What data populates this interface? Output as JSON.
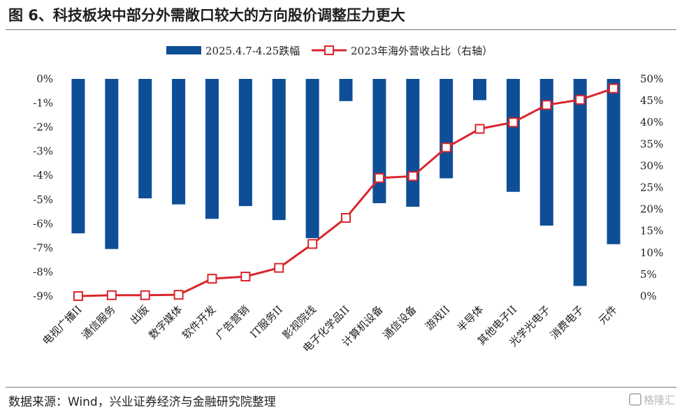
{
  "page": {
    "title": "图 6、科技板块中部分外需敞口较大的方向股价调整压力更大",
    "source": "数据来源：Wind，兴业证券经济与金融研究院整理",
    "watermark": "格隆汇"
  },
  "colors": {
    "bar": "#0e4e96",
    "line": "#d9262c",
    "marker_fill": "#ffffff",
    "axis_text": "#1f1f1f"
  },
  "chart_data": {
    "type": "bar",
    "categories": [
      "电视广播II",
      "通信服务",
      "出版",
      "数字媒体",
      "软件开发",
      "广告营销",
      "IT服务II",
      "影视院线",
      "电子化学品II",
      "计算机设备",
      "通信设备",
      "游戏II",
      "半导体",
      "其他电子II",
      "光学光电子",
      "消费电子",
      "元件"
    ],
    "series": [
      {
        "name": "2025.4.7-4.25跌幅",
        "type": "bar",
        "axis": "left",
        "values": [
          -6.4,
          -7.05,
          -4.95,
          -5.2,
          -5.8,
          -5.27,
          -5.85,
          -6.6,
          -0.92,
          -5.15,
          -5.3,
          -4.12,
          -0.88,
          -4.68,
          -6.08,
          -8.58,
          -6.85
        ]
      },
      {
        "name": "2023年海外营收占比（右轴）",
        "type": "line",
        "axis": "right",
        "values": [
          0.0,
          0.2,
          0.2,
          0.3,
          4.0,
          4.5,
          6.5,
          12.0,
          18.0,
          27.2,
          27.6,
          34.2,
          38.5,
          40.0,
          44.0,
          45.2,
          47.8
        ]
      }
    ],
    "y_left": {
      "ylim": [
        -9,
        0
      ],
      "ticks": [
        0,
        -1,
        -2,
        -3,
        -4,
        -5,
        -6,
        -7,
        -8,
        -9
      ],
      "tick_labels": [
        "0%",
        "-1%",
        "-2%",
        "-3%",
        "-4%",
        "-5%",
        "-6%",
        "-7%",
        "-8%",
        "-9%"
      ]
    },
    "y_right": {
      "ylim": [
        0,
        50
      ],
      "ticks": [
        50,
        45,
        40,
        35,
        30,
        25,
        20,
        15,
        10,
        5,
        0
      ],
      "tick_labels": [
        "50%",
        "45%",
        "40%",
        "35%",
        "30%",
        "25%",
        "20%",
        "15%",
        "10%",
        "5%",
        "0%"
      ]
    },
    "legend": {
      "position": "top-center",
      "entries": [
        "2025.4.7-4.25跌幅",
        "2023年海外营收占比（右轴）"
      ]
    },
    "grid": false
  }
}
